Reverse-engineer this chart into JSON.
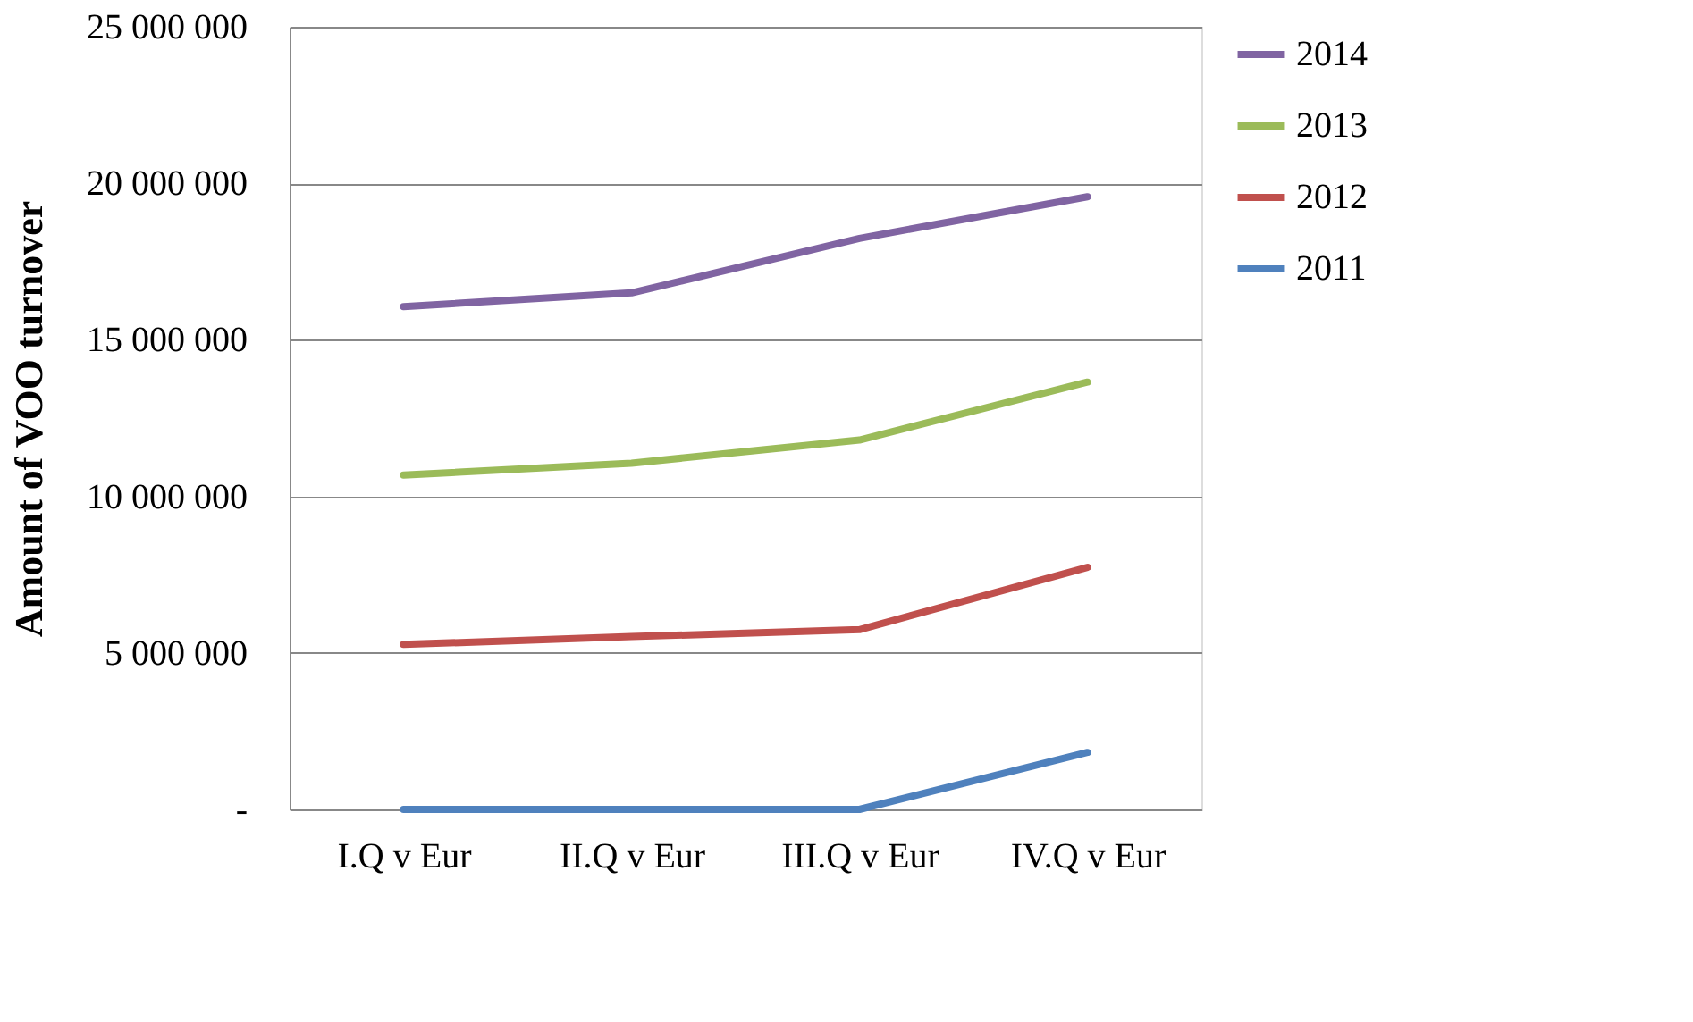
{
  "chart_data": {
    "type": "line",
    "ylabel": "Amount of VOO turnover",
    "categories": [
      "I.Q v Eur",
      "II.Q v Eur",
      "III.Q v Eur",
      "IV.Q v Eur"
    ],
    "series": [
      {
        "name": "2014",
        "color": "#8064a2",
        "values": [
          16060000,
          16500000,
          18240000,
          19570000
        ]
      },
      {
        "name": "2013",
        "color": "#9bbb59",
        "values": [
          10680000,
          11060000,
          11800000,
          13650000
        ]
      },
      {
        "name": "2012",
        "color": "#c0504d",
        "values": [
          5270000,
          5520000,
          5740000,
          7730000
        ]
      },
      {
        "name": "2011",
        "color": "#4f81bd",
        "values": [
          0,
          0,
          0,
          1820000
        ]
      }
    ],
    "ylim": [
      0,
      25000000
    ],
    "yticks": [
      {
        "value": 0,
        "label": "-"
      },
      {
        "value": 5000000,
        "label": "5 000 000"
      },
      {
        "value": 10000000,
        "label": "10 000 000"
      },
      {
        "value": 15000000,
        "label": "15 000 000"
      },
      {
        "value": 20000000,
        "label": "20 000 000"
      },
      {
        "value": 25000000,
        "label": "25 000 000"
      }
    ],
    "grid": "y",
    "legend": "right",
    "marker": "none",
    "line_style": "solid"
  }
}
